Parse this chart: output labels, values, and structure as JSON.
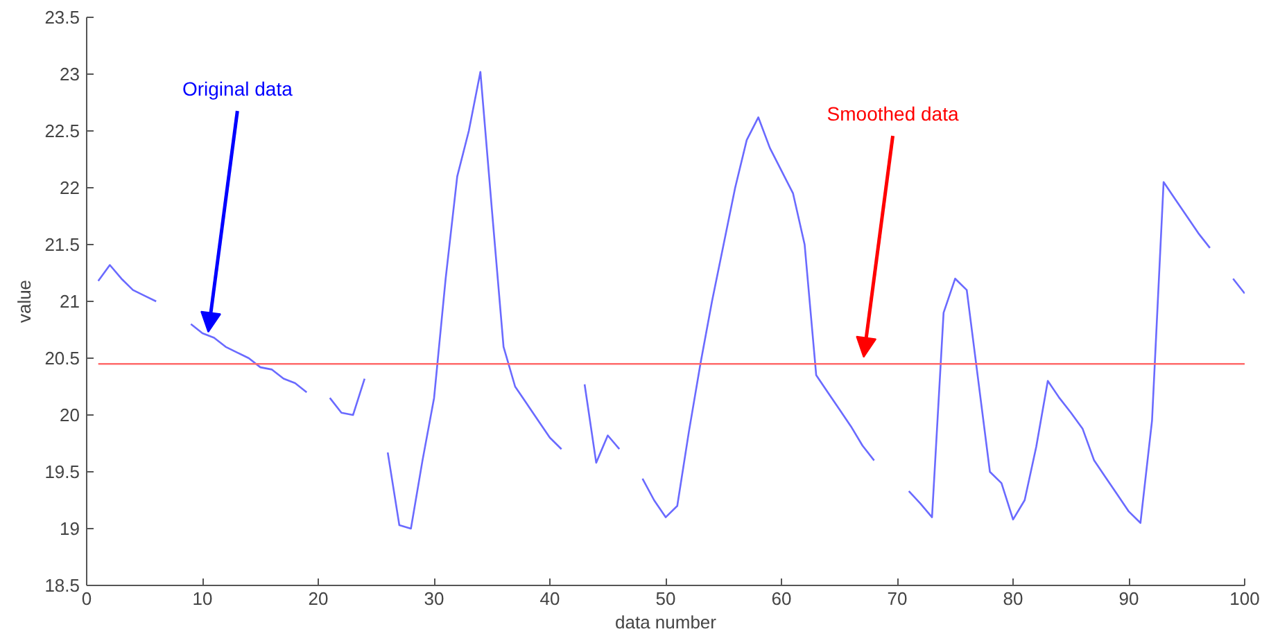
{
  "chart_data": {
    "type": "line",
    "xlabel": "data number",
    "ylabel": "value",
    "xlim": [
      0,
      100
    ],
    "xticks": [
      0,
      10,
      20,
      30,
      40,
      50,
      60,
      70,
      80,
      90,
      100
    ],
    "ylim": [
      18.5,
      23.5
    ],
    "yticks": [
      18.5,
      19,
      19.5,
      20,
      20.5,
      21,
      21.5,
      22,
      22.5,
      23,
      23.5
    ],
    "grid": false,
    "line_style": "solid",
    "marker": "none",
    "series": [
      {
        "color": "#6a6aff",
        "x": [
          1,
          2,
          3,
          4,
          5,
          6,
          7,
          8,
          9,
          10,
          11,
          12,
          13,
          14,
          15,
          16,
          17,
          18,
          19,
          20,
          21,
          22,
          23,
          24,
          25,
          26,
          27,
          28,
          29,
          30,
          31,
          32,
          33,
          34,
          35,
          36,
          37,
          38,
          39,
          40,
          41,
          42,
          43,
          44,
          45,
          46,
          47,
          48,
          49,
          50,
          51,
          52,
          53,
          54,
          55,
          56,
          57,
          58,
          59,
          60,
          61,
          62,
          63,
          64,
          65,
          66,
          67,
          68,
          69,
          70,
          71,
          72,
          73,
          74,
          75,
          76,
          77,
          78,
          79,
          80,
          81,
          82,
          83,
          84,
          85,
          86,
          87,
          88,
          89,
          90,
          91,
          92,
          93,
          94,
          95,
          96,
          97,
          98,
          99,
          100
        ],
        "values": [
          21.18,
          21.32,
          21.2,
          21.1,
          21.05,
          21.0,
          null,
          null,
          20.8,
          20.72,
          20.68,
          20.6,
          20.55,
          20.5,
          20.42,
          20.4,
          20.32,
          20.28,
          20.2,
          null,
          20.15,
          20.02,
          20.0,
          20.32,
          null,
          19.67,
          19.03,
          19.0,
          19.6,
          20.15,
          21.2,
          22.1,
          22.5,
          23.02,
          21.8,
          20.6,
          20.25,
          20.1,
          19.95,
          19.8,
          19.7,
          null,
          20.27,
          19.58,
          19.82,
          19.7,
          null,
          19.44,
          19.25,
          19.1,
          19.2,
          19.85,
          20.45,
          21.0,
          21.5,
          22.0,
          22.42,
          22.62,
          22.35,
          22.15,
          21.95,
          21.5,
          20.35,
          20.2,
          20.05,
          19.9,
          19.73,
          19.6,
          null,
          null,
          19.33,
          19.22,
          19.1,
          20.9,
          21.2,
          21.1,
          20.3,
          19.5,
          19.4,
          19.08,
          19.25,
          19.72,
          20.3,
          20.15,
          20.02,
          19.88,
          19.6,
          19.45,
          19.3,
          19.15,
          19.05,
          19.95,
          22.05,
          21.9,
          21.75,
          21.6,
          21.47,
          null,
          21.2,
          21.07
        ]
      },
      {
        "color": "#ff6a6a",
        "x": [
          1,
          100
        ],
        "values": [
          20.45,
          20.45
        ]
      }
    ],
    "annotations": [
      {
        "text": "Original data",
        "x": 10.5,
        "y": 20.73
      },
      {
        "text": "Smoothed data",
        "x": 67.1,
        "y": 20.51
      }
    ]
  }
}
